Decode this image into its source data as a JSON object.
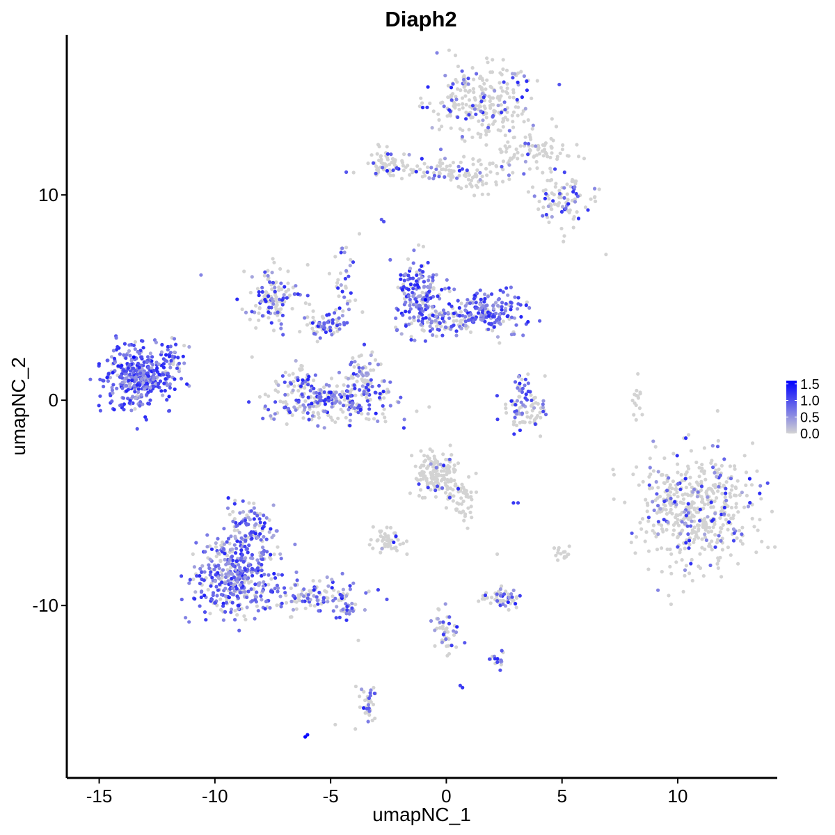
{
  "chart_data": {
    "type": "scatter",
    "title": "Diaph2",
    "xlabel": "umapNC_1",
    "ylabel": "umapNC_2",
    "xlim": [
      -16.4,
      14.3
    ],
    "ylim": [
      -18.4,
      17.8
    ],
    "x_ticks": [
      -15,
      -10,
      -5,
      0,
      5,
      10
    ],
    "x_tick_labels": [
      "-15",
      "-10",
      "-5",
      "0",
      "5",
      "10"
    ],
    "y_ticks": [
      -10,
      0,
      10
    ],
    "y_tick_labels": [
      "-10",
      "0",
      "10"
    ],
    "grid": false,
    "legend": {
      "placement": "right",
      "type": "colorbar",
      "min": 0.0,
      "max": 1.6,
      "ticks": [
        0.0,
        0.5,
        1.0,
        1.5
      ],
      "tick_labels": [
        "0.0",
        "0.5",
        "1.0",
        "1.5"
      ]
    },
    "color_low": "#d3d3d3",
    "color_high": "#0000ff",
    "clusters": [
      {
        "cx": 1.5,
        "cy": 14.6,
        "sx": 1.05,
        "sy": 1.0,
        "n": 260,
        "expr": 0.2,
        "cont": "top-main"
      },
      {
        "cx": 3.6,
        "cy": 12.1,
        "sx": 0.9,
        "sy": 0.6,
        "n": 90,
        "expr": 0.08,
        "cont": "top-arm"
      },
      {
        "cx": 5.2,
        "cy": 9.7,
        "sx": 0.7,
        "sy": 0.6,
        "n": 90,
        "expr": 0.3,
        "cont": "top-tail"
      },
      {
        "cx": -2.6,
        "cy": 11.6,
        "sx": 0.4,
        "sy": 0.35,
        "n": 55,
        "expr": 0.12,
        "cont": "top-left-dot"
      },
      {
        "cx": -0.9,
        "cy": 11.2,
        "sx": 1.3,
        "sy": 0.25,
        "n": 70,
        "expr": 0.25,
        "cont": "top-left-strip"
      },
      {
        "cx": 1.1,
        "cy": 11.0,
        "sx": 0.6,
        "sy": 0.5,
        "n": 50,
        "expr": 0.1,
        "cont": "top-stem"
      },
      {
        "cx": -13.3,
        "cy": 1.2,
        "sx": 0.75,
        "sy": 0.75,
        "n": 380,
        "expr": 0.95,
        "cont": "left-dense"
      },
      {
        "cx": -11.9,
        "cy": 1.8,
        "sx": 0.35,
        "sy": 0.6,
        "n": 35,
        "expr": 0.6,
        "cont": "left-arm"
      },
      {
        "cx": -7.5,
        "cy": 5.0,
        "sx": 0.55,
        "sy": 0.7,
        "n": 120,
        "expr": 0.45,
        "cont": "upper-mid-left"
      },
      {
        "cx": -5.2,
        "cy": 3.8,
        "sx": 0.5,
        "sy": 0.35,
        "n": 70,
        "expr": 0.55,
        "cont": "upper-mid-knot"
      },
      {
        "cx": -4.4,
        "cy": 6.0,
        "sx": 0.35,
        "sy": 0.9,
        "n": 30,
        "expr": 0.3,
        "cont": "upper-mid-stalk"
      },
      {
        "cx": -1.1,
        "cy": 5.0,
        "sx": 0.55,
        "sy": 0.9,
        "n": 170,
        "expr": 0.8,
        "cont": "center-lobe"
      },
      {
        "cx": 1.8,
        "cy": 4.3,
        "sx": 0.8,
        "sy": 0.45,
        "n": 170,
        "expr": 0.85,
        "cont": "center-right-lobe"
      },
      {
        "cx": -0.1,
        "cy": 3.9,
        "sx": 0.9,
        "sy": 0.35,
        "n": 90,
        "expr": 0.5,
        "cont": "center-bridge"
      },
      {
        "cx": -5.0,
        "cy": -0.1,
        "sx": 1.35,
        "sy": 0.55,
        "n": 260,
        "expr": 0.55,
        "cont": "crescent"
      },
      {
        "cx": -3.6,
        "cy": 1.2,
        "sx": 0.35,
        "sy": 0.55,
        "n": 60,
        "expr": 0.4,
        "cont": "crescent-right-horn"
      },
      {
        "cx": -6.3,
        "cy": 1.0,
        "sx": 0.3,
        "sy": 0.4,
        "n": 40,
        "expr": 0.45,
        "cont": "crescent-left-horn"
      },
      {
        "cx": 3.5,
        "cy": -0.5,
        "sx": 0.55,
        "sy": 0.45,
        "n": 70,
        "expr": 0.35,
        "cont": "small-right-crescent"
      },
      {
        "cx": 3.2,
        "cy": 0.7,
        "sx": 0.2,
        "sy": 0.4,
        "n": 25,
        "expr": 0.7,
        "cont": "small-right-top"
      },
      {
        "cx": 10.7,
        "cy": -5.3,
        "sx": 1.25,
        "sy": 1.35,
        "n": 520,
        "expr": 0.18,
        "cont": "big-right"
      },
      {
        "cx": -9.0,
        "cy": -8.5,
        "sx": 0.9,
        "sy": 1.0,
        "n": 420,
        "expr": 0.75,
        "cont": "lower-left"
      },
      {
        "cx": -8.5,
        "cy": -6.2,
        "sx": 0.5,
        "sy": 0.7,
        "n": 80,
        "expr": 0.7,
        "cont": "lower-left-top"
      },
      {
        "cx": -5.8,
        "cy": -9.5,
        "sx": 1.0,
        "sy": 0.4,
        "n": 120,
        "expr": 0.55,
        "cont": "lower-left-tail"
      },
      {
        "cx": -4.2,
        "cy": -10.2,
        "sx": 0.3,
        "sy": 0.2,
        "n": 20,
        "expr": 0.8,
        "cont": "lower-left-tip"
      },
      {
        "cx": -0.5,
        "cy": -3.6,
        "sx": 0.5,
        "sy": 0.6,
        "n": 150,
        "expr": 0.03,
        "cont": "gray-upper"
      },
      {
        "cx": 0.7,
        "cy": -4.8,
        "sx": 0.35,
        "sy": 0.6,
        "n": 50,
        "expr": 0.03,
        "cont": "gray-tail"
      },
      {
        "cx": -2.5,
        "cy": -6.8,
        "sx": 0.35,
        "sy": 0.25,
        "n": 50,
        "expr": 0.08,
        "cont": "gray-small"
      },
      {
        "cx": 2.4,
        "cy": -9.6,
        "sx": 0.45,
        "sy": 0.25,
        "n": 55,
        "expr": 0.5,
        "cont": "small-lower-right"
      },
      {
        "cx": -0.1,
        "cy": -11.3,
        "sx": 0.3,
        "sy": 0.6,
        "n": 45,
        "expr": 0.45,
        "cont": "lower-stalk"
      },
      {
        "cx": 2.3,
        "cy": -12.6,
        "sx": 0.25,
        "sy": 0.2,
        "n": 18,
        "expr": 0.7,
        "cont": "lower-right-dot"
      },
      {
        "cx": -3.4,
        "cy": -15.0,
        "sx": 0.2,
        "sy": 0.6,
        "n": 35,
        "expr": 0.3,
        "cont": "bottom-stalk"
      },
      {
        "cx": 5.0,
        "cy": -7.4,
        "sx": 0.2,
        "sy": 0.2,
        "n": 15,
        "expr": 0.1,
        "cont": "right-dot"
      },
      {
        "cx": 8.2,
        "cy": 0.2,
        "sx": 0.15,
        "sy": 0.5,
        "n": 15,
        "expr": 0.0,
        "cont": "thin-right"
      }
    ],
    "singletons": [
      [
        -10.6,
        6.1,
        0.6
      ],
      [
        -6.1,
        -16.4,
        1.6
      ],
      [
        -6.0,
        -16.3,
        1.5
      ],
      [
        -2.8,
        8.8,
        0.9
      ],
      [
        -2.7,
        8.7,
        1.0
      ],
      [
        2.9,
        -5.0,
        1.2
      ],
      [
        3.1,
        -5.0,
        1.1
      ],
      [
        0.7,
        -14.0,
        1.2
      ],
      [
        0.6,
        -13.9,
        1.1
      ],
      [
        -0.9,
        4.9,
        1.6
      ],
      [
        -13.5,
        2.1,
        1.6
      ],
      [
        -4.5,
        7.4,
        0.6
      ],
      [
        -4.4,
        7.2,
        0.5
      ],
      [
        6.9,
        7.1,
        0.0
      ],
      [
        5.1,
        8.0,
        0.0
      ],
      [
        -4.8,
        -15.8,
        0.0
      ],
      [
        -3.8,
        -11.7,
        0.0
      ],
      [
        2.2,
        -7.5,
        0.0
      ],
      [
        -1.7,
        -7.5,
        0.0
      ]
    ]
  }
}
